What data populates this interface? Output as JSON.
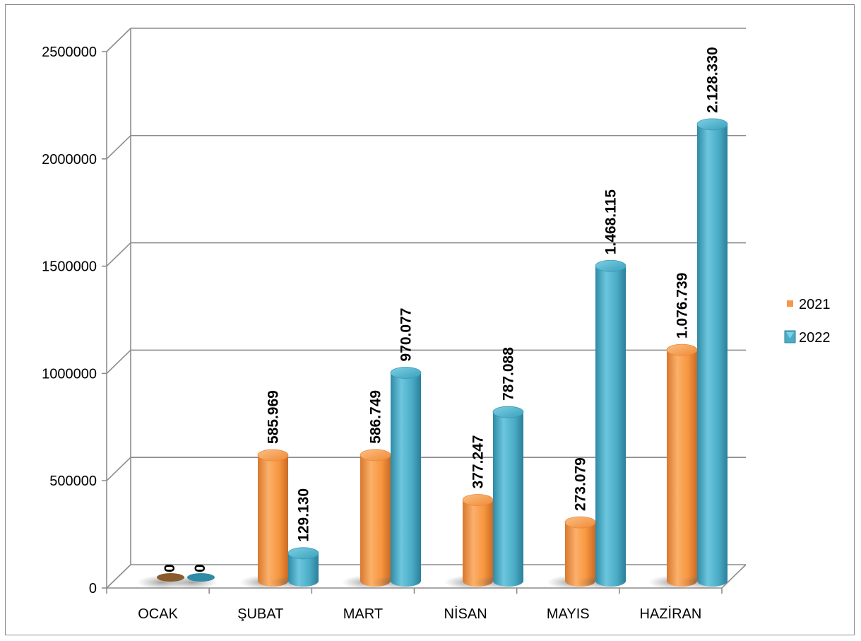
{
  "chart_data": {
    "type": "bar",
    "title": "",
    "xlabel": "",
    "ylabel": "",
    "categories": [
      "OCAK",
      "ŞUBAT",
      "MART",
      "NİSAN",
      "MAYIS",
      "HAZİRAN"
    ],
    "series": [
      {
        "name": "2021",
        "color": "#f79646",
        "values": [
          0,
          585969,
          586749,
          377247,
          273079,
          1076739
        ],
        "labels": [
          "0",
          "585.969",
          "586.749",
          "377.247",
          "273.079",
          "1.076.739"
        ]
      },
      {
        "name": "2022",
        "color": "#4bacc6",
        "values": [
          0,
          129130,
          970077,
          787088,
          1468115,
          2128330
        ],
        "labels": [
          "0",
          "129.130",
          "970.077",
          "787.088",
          "1.468.115",
          "2.128.330"
        ]
      }
    ],
    "ylim": [
      0,
      2500000
    ],
    "yticks": [
      "0",
      "500000",
      "1000000",
      "1500000",
      "2000000",
      "2500000"
    ],
    "grid": true,
    "legend_position": "right",
    "three_d": true
  }
}
